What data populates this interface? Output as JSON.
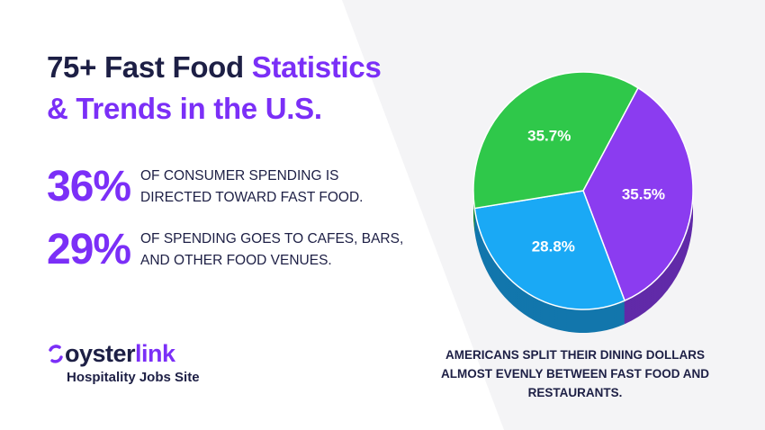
{
  "header": {
    "title_dark": "75+ Fast Food",
    "title_accent": "Statistics",
    "title_line2": "& Trends in the U.S."
  },
  "stats": [
    {
      "value": "36%",
      "text": [
        "OF CONSUMER SPENDING IS",
        "DIRECTED TOWARD FAST FOOD."
      ]
    },
    {
      "value": "29%",
      "text": [
        "OF SPENDING GOES TO CAFES, BARS,",
        "AND OTHER FOOD VENUES."
      ]
    }
  ],
  "logo": {
    "name_dark": "oyster",
    "name_accent": "link",
    "tagline": "Hospitality Jobs Site"
  },
  "chart_data": {
    "type": "pie",
    "values": [
      35.5,
      28.8,
      35.7
    ],
    "value_labels": [
      "35.5%",
      "28.8%",
      "35.7%"
    ],
    "colors": [
      "#8b3cf0",
      "#1aa9f5",
      "#2fc84a"
    ],
    "caption": "AMERICANS SPLIT THEIR DINING DOLLARS ALMOST EVENLY BETWEEN FAST FOOD AND RESTAURANTS."
  }
}
